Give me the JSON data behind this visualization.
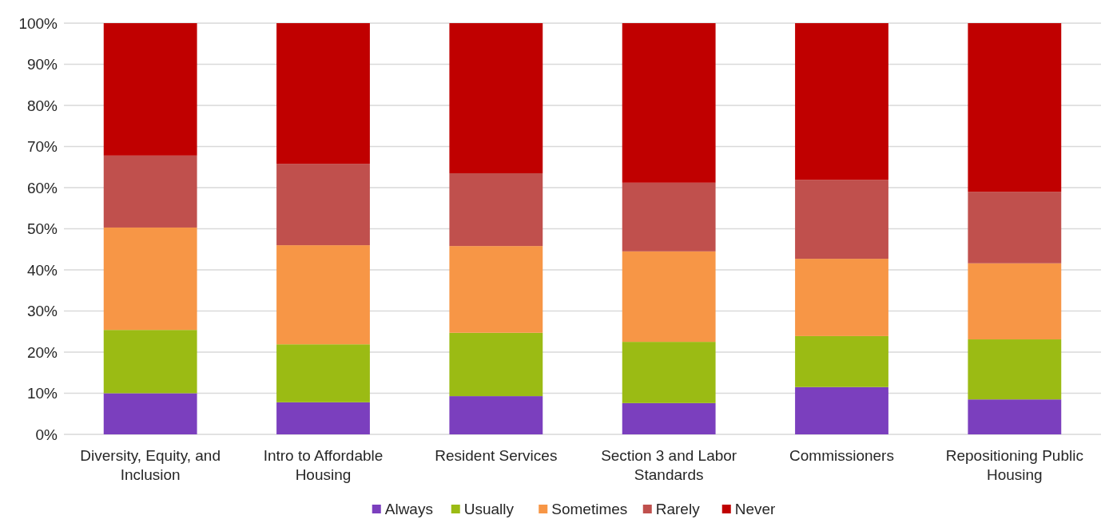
{
  "chart_data": {
    "type": "bar",
    "stacked": true,
    "categories": [
      "Diversity, Equity, and Inclusion",
      "Intro to Affordable Housing",
      "Resident Services",
      "Section 3 and Labor Standards",
      "Commissioners",
      "Repositioning Public Housing"
    ],
    "series": [
      {
        "name": "Always",
        "color": "#7b3fbe",
        "values": [
          10,
          7.8,
          9.3,
          7.6,
          11.5,
          8.5
        ]
      },
      {
        "name": "Usually",
        "color": "#9bbb14",
        "values": [
          15.4,
          14.1,
          15.4,
          14.9,
          12.4,
          14.6
        ]
      },
      {
        "name": "Sometimes",
        "color": "#f79646",
        "values": [
          24.9,
          24.1,
          21.1,
          22.0,
          18.8,
          18.5
        ]
      },
      {
        "name": "Rarely",
        "color": "#c0504d",
        "values": [
          17.5,
          19.8,
          17.7,
          16.7,
          19.2,
          17.4
        ]
      },
      {
        "name": "Never",
        "color": "#c00000",
        "values": [
          32.2,
          34.2,
          36.5,
          38.8,
          38.1,
          41.0
        ]
      }
    ],
    "ylim": [
      0,
      100
    ],
    "yticks": [
      {
        "value": 0,
        "label": "0%"
      },
      {
        "value": 10,
        "label": "10%"
      },
      {
        "value": 20,
        "label": "20%"
      },
      {
        "value": 30,
        "label": "30%"
      },
      {
        "value": 40,
        "label": "40%"
      },
      {
        "value": 50,
        "label": "50%"
      },
      {
        "value": 60,
        "label": "60%"
      },
      {
        "value": 70,
        "label": "70%"
      },
      {
        "value": 80,
        "label": "80%"
      },
      {
        "value": 90,
        "label": "90%"
      },
      {
        "value": 100,
        "label": "100%"
      }
    ],
    "grid": "y",
    "legend": "bottom"
  }
}
